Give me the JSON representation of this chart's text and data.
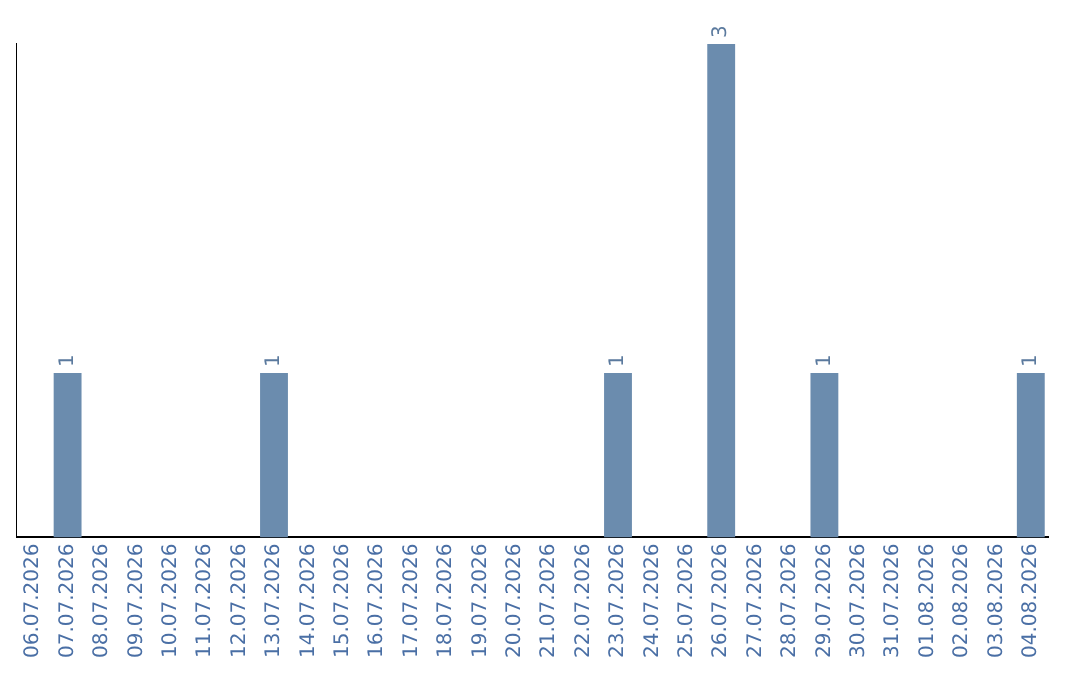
{
  "chart_data": {
    "type": "bar",
    "categories": [
      "06.07.2026",
      "07.07.2026",
      "08.07.2026",
      "09.07.2026",
      "10.07.2026",
      "11.07.2026",
      "12.07.2026",
      "13.07.2026",
      "14.07.2026",
      "15.07.2026",
      "16.07.2026",
      "17.07.2026",
      "18.07.2026",
      "19.07.2026",
      "20.07.2026",
      "21.07.2026",
      "22.07.2026",
      "23.07.2026",
      "24.07.2026",
      "25.07.2026",
      "26.07.2026",
      "27.07.2026",
      "28.07.2026",
      "29.07.2026",
      "30.07.2026",
      "31.07.2026",
      "01.08.2026",
      "02.08.2026",
      "03.08.2026",
      "04.08.2026"
    ],
    "values": [
      0,
      1,
      0,
      0,
      0,
      0,
      0,
      1,
      0,
      0,
      0,
      0,
      0,
      0,
      0,
      0,
      0,
      1,
      0,
      0,
      3,
      0,
      0,
      1,
      0,
      0,
      0,
      0,
      0,
      1
    ],
    "value_labels": [
      null,
      "1",
      null,
      null,
      null,
      null,
      null,
      "1",
      null,
      null,
      null,
      null,
      null,
      null,
      null,
      null,
      null,
      "1",
      null,
      null,
      "3",
      null,
      null,
      "1",
      null,
      null,
      null,
      null,
      null,
      "1"
    ],
    "color": "#6b8cae",
    "grid": false,
    "legend": false,
    "tick_labels": "x"
  }
}
